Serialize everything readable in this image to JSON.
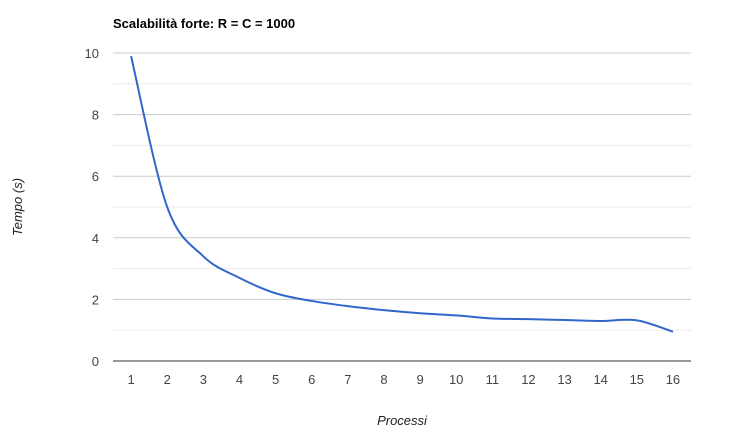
{
  "chart_data": {
    "type": "line",
    "title": "Scalabilità forte: R = C = 1000",
    "xlabel": "Processi",
    "ylabel": "Tempo (s)",
    "x": [
      1,
      2,
      3,
      4,
      5,
      6,
      7,
      8,
      9,
      10,
      11,
      12,
      13,
      14,
      15,
      16
    ],
    "xlim": [
      0.5,
      16.5
    ],
    "ylim": [
      0,
      10
    ],
    "x_ticks": [
      "1",
      "2",
      "3",
      "4",
      "5",
      "6",
      "7",
      "8",
      "9",
      "10",
      "11",
      "12",
      "13",
      "14",
      "15",
      "16"
    ],
    "y_ticks": [
      "0",
      "2",
      "4",
      "6",
      "8",
      "10"
    ],
    "y_tick_values": [
      0,
      2,
      4,
      6,
      8,
      10
    ],
    "minor_grid_values": [
      1,
      3,
      5,
      7,
      9
    ],
    "grid": true,
    "legend": "none",
    "series": [
      {
        "values": [
          9.9,
          5.0,
          3.4,
          2.7,
          2.2,
          1.95,
          1.78,
          1.65,
          1.55,
          1.48,
          1.38,
          1.36,
          1.33,
          1.3,
          1.32,
          0.95
        ],
        "color": "#3366cc"
      }
    ]
  }
}
